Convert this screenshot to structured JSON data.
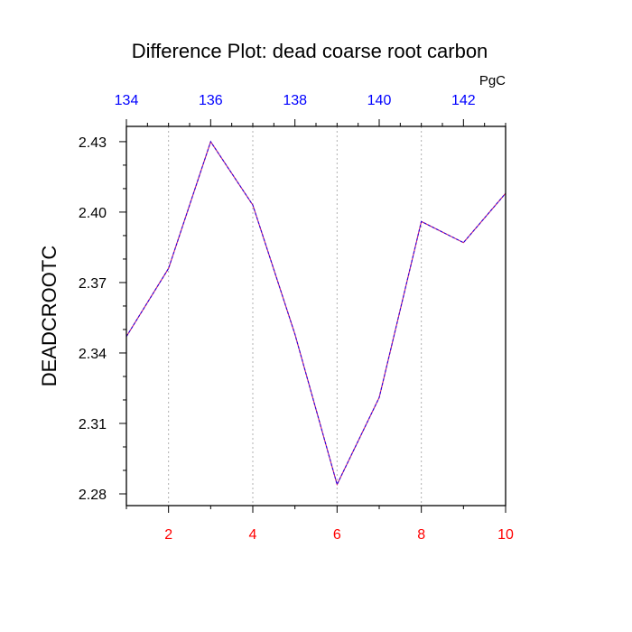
{
  "chart_data": {
    "type": "line",
    "title": "Difference Plot: dead coarse root carbon",
    "ylabel": "DEADCROOTC",
    "top_axis_units": "PgC",
    "x": [
      1,
      2,
      3,
      4,
      5,
      6,
      7,
      8,
      9,
      10
    ],
    "xlim": [
      1,
      10
    ],
    "ylim": [
      2.275,
      2.4365
    ],
    "x_ticks": [
      2,
      4,
      6,
      8,
      10
    ],
    "x_tick_labels": [
      "2",
      "4",
      "6",
      "8",
      "10"
    ],
    "y_ticks": [
      2.28,
      2.31,
      2.34,
      2.37,
      2.4,
      2.43
    ],
    "y_tick_labels": [
      "2.28",
      "2.31",
      "2.34",
      "2.37",
      "2.40",
      "2.43"
    ],
    "top_ticks": [
      134,
      136,
      138,
      140,
      142
    ],
    "top_tick_labels": [
      "134",
      "136",
      "138",
      "140",
      "142"
    ],
    "top_xlim": [
      134,
      143
    ],
    "series": [
      {
        "values": [
          2.347,
          2.376,
          2.43,
          2.403,
          2.348,
          2.284,
          2.321,
          2.396,
          2.387,
          2.408
        ]
      }
    ],
    "grid": "vertical dotted at major x ticks",
    "colors": {
      "line": "#6a00c8",
      "bottom_tick_labels": "#ff0000",
      "top_tick_labels": "#0000ff",
      "axes": "#000000",
      "grid": "#b0b0b0"
    }
  }
}
